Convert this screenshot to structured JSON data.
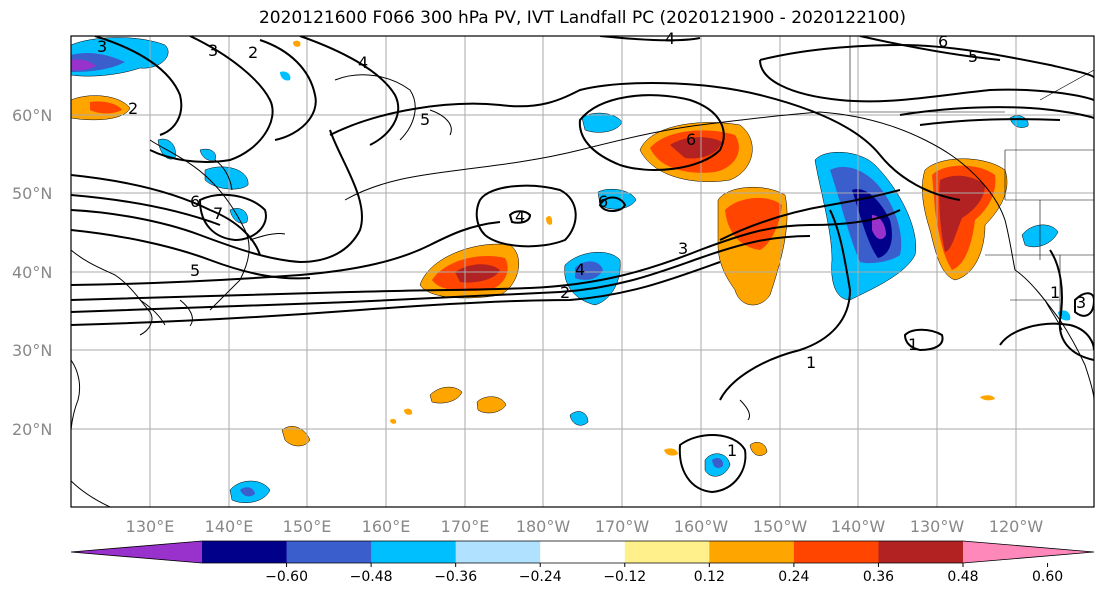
{
  "title": "2020121600 F066 300 hPa PV, IVT Landfall PC (2020121900 - 2020122100)",
  "lat_labels": [
    "60°N",
    "50°N",
    "40°N",
    "30°N",
    "20°N"
  ],
  "lon_labels": [
    "130°E",
    "140°E",
    "150°E",
    "160°E",
    "170°E",
    "180°W",
    "170°W",
    "160°W",
    "150°W",
    "140°W",
    "130°W",
    "120°W"
  ],
  "contour_labels": [
    "3",
    "2",
    "4",
    "5",
    "6",
    "7",
    "5",
    "4",
    "6",
    "6",
    "3",
    "2",
    "1",
    "1",
    "1",
    "5",
    "6",
    "3",
    "4"
  ],
  "colorbar": {
    "colors": [
      "#9932cc",
      "#00008b",
      "#3a5fcd",
      "#00bfff",
      "#b0e2ff",
      "#ffffff",
      "#fff08c",
      "#ffa500",
      "#ff4500",
      "#b22222",
      "#ff88bb"
    ],
    "tick_labels": [
      "−0.60",
      "−0.48",
      "−0.36",
      "−0.24",
      "−0.12",
      "0.12",
      "0.24",
      "0.36",
      "0.48",
      "0.60"
    ]
  }
}
